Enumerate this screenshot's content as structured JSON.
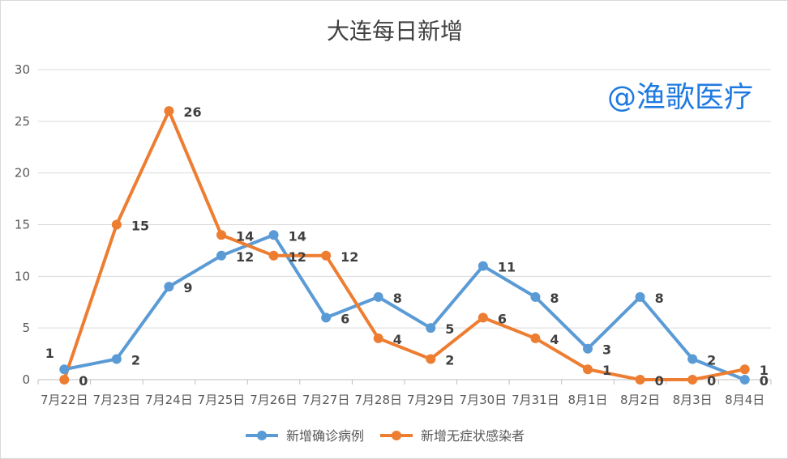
{
  "chart_data": {
    "type": "line",
    "title": "大连每日新增",
    "categories": [
      "7月22日",
      "7月23日",
      "7月24日",
      "7月25日",
      "7月26日",
      "7月27日",
      "7月28日",
      "7月29日",
      "7月30日",
      "7月31日",
      "8月1日",
      "8月2日",
      "8月3日",
      "8月4日"
    ],
    "series": [
      {
        "name": "新增确诊病例",
        "color": "#5b9bd5",
        "values": [
          1,
          2,
          9,
          12,
          14,
          6,
          8,
          5,
          11,
          8,
          3,
          8,
          2,
          0
        ]
      },
      {
        "name": "新增无症状感染者",
        "color": "#ed7d31",
        "values": [
          0,
          15,
          26,
          14,
          12,
          12,
          4,
          2,
          6,
          4,
          1,
          0,
          0,
          1
        ]
      }
    ],
    "yticks": [
      0,
      5,
      10,
      15,
      20,
      25,
      30
    ],
    "ylim": [
      0,
      30
    ],
    "grid": true,
    "legend_position": "bottom",
    "xlabel": "",
    "ylabel": ""
  },
  "watermark": "@渔歌医疗"
}
